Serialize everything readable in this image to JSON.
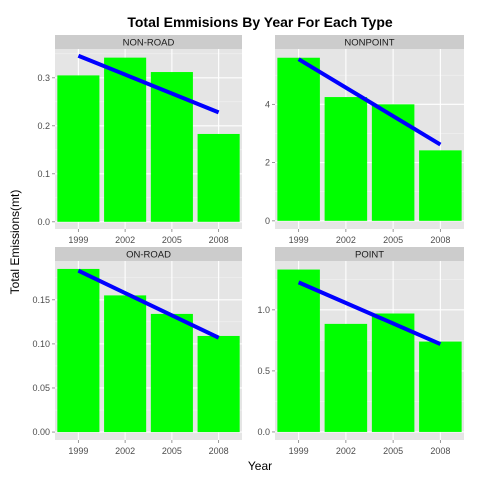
{
  "chart_data": {
    "type": "bar",
    "title": "Total Emmisions By Year For Each Type",
    "xlabel": "Year",
    "ylabel": "Total Emissions(mt)",
    "categories": [
      "1999",
      "2002",
      "2005",
      "2008"
    ],
    "bar_color": "#00ff00",
    "trend_color": "#0000ff",
    "panel_bg": "#e5e5e5",
    "strip_bg": "#cccccc",
    "grid_major_color": "#ffffff",
    "grid_minor_color": "#f2f2f2",
    "grid": true,
    "panels": [
      {
        "label": "NON-ROAD",
        "values": [
          0.305,
          0.342,
          0.312,
          0.183
        ],
        "trend": [
          0.346,
          0.228
        ],
        "ylim": [
          -0.015,
          0.36
        ],
        "yticks": [
          0,
          0.1,
          0.2,
          0.3
        ],
        "ytick_labels": [
          "0.0",
          "0.1",
          "0.2",
          "0.3"
        ]
      },
      {
        "label": "NONPOINT",
        "values": [
          5.6,
          4.25,
          4.0,
          2.42
        ],
        "trend": [
          5.55,
          2.62
        ],
        "ylim": [
          -0.28,
          5.9
        ],
        "yticks": [
          0,
          2,
          4
        ],
        "ytick_labels": [
          "0",
          "2",
          "4"
        ]
      },
      {
        "label": "ON-ROAD",
        "values": [
          0.185,
          0.155,
          0.134,
          0.109
        ],
        "trend": [
          0.183,
          0.107
        ],
        "ylim": [
          -0.009,
          0.194
        ],
        "yticks": [
          0,
          0.05,
          0.1,
          0.15
        ],
        "ytick_labels": [
          "0.00",
          "0.05",
          "0.10",
          "0.15"
        ]
      },
      {
        "label": "POINT",
        "values": [
          1.33,
          0.885,
          0.97,
          0.74
        ],
        "trend": [
          1.225,
          0.72
        ],
        "ylim": [
          -0.066,
          1.4
        ],
        "yticks": [
          0,
          0.5,
          1.0
        ],
        "ytick_labels": [
          "0.0",
          "0.5",
          "1.0"
        ]
      }
    ]
  }
}
